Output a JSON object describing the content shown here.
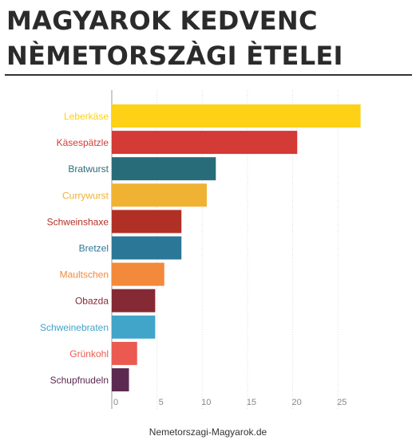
{
  "title_line1": "MAGYAROK KEDVENC",
  "title_line2": "NÈMETORSZÀGI ÈTELEI",
  "footer": "Nemetorszagi-Magyarok.de",
  "chart_data": {
    "type": "bar",
    "orientation": "horizontal",
    "categories": [
      "Leberkäse",
      "Käsespätzle",
      "Bratwurst",
      "Currywurst",
      "Schweinshaxe",
      "Bretzel",
      "Maultschen",
      "Obazda",
      "Schweinebraten",
      "Grünkohl",
      "Schupfnudeln"
    ],
    "values": [
      27.5,
      20.5,
      11.5,
      10.5,
      7.7,
      7.7,
      5.8,
      4.8,
      4.8,
      2.8,
      1.9
    ],
    "colors": [
      "#fcd116",
      "#d43a36",
      "#286c7a",
      "#f0b232",
      "#b13026",
      "#2b7797",
      "#f3893a",
      "#852a34",
      "#41a4c9",
      "#ea5a50",
      "#5c2a51"
    ],
    "xticks": [
      0,
      5,
      10,
      15,
      20,
      25
    ],
    "xlim": [
      0,
      30
    ],
    "grid": true,
    "title": "",
    "xlabel": "",
    "ylabel": ""
  }
}
